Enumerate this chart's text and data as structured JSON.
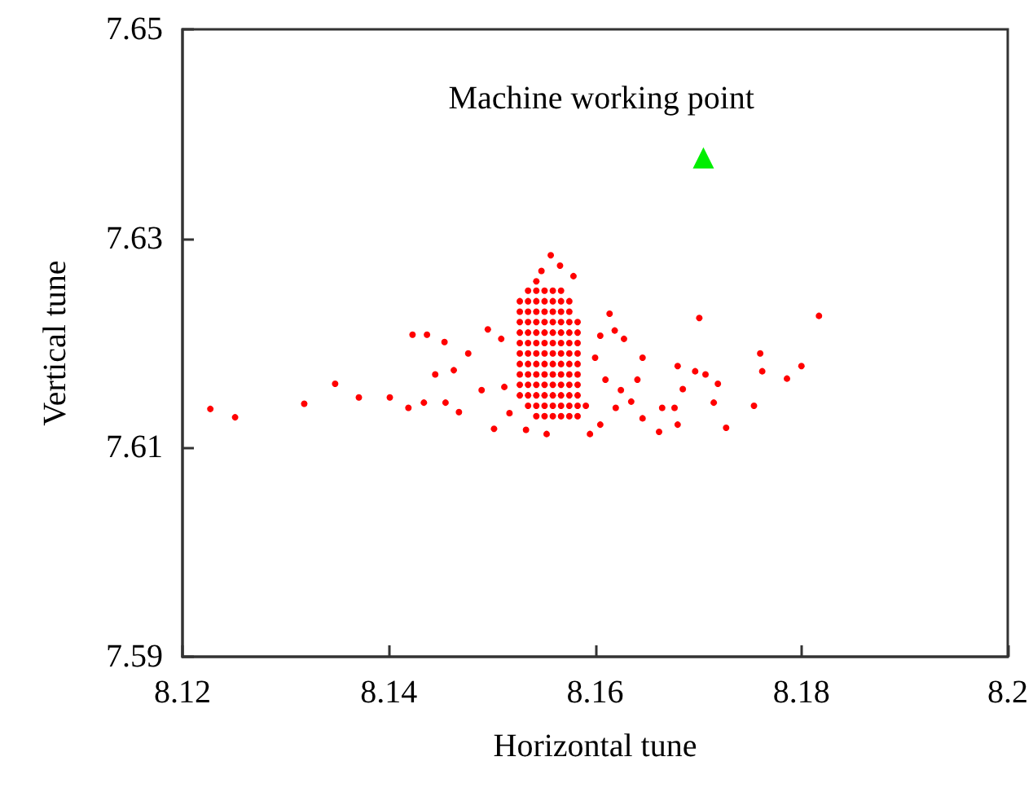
{
  "chart_data": {
    "type": "scatter",
    "xlabel": "Horizontal tune",
    "ylabel": "Vertical tune",
    "xlim": [
      8.12,
      8.2
    ],
    "xticks": [
      8.12,
      8.14,
      8.16,
      8.18,
      8.2
    ],
    "ylim": [
      7.59,
      7.65
    ],
    "yticks": [
      7.59,
      7.61,
      7.63,
      7.65
    ],
    "grid": false,
    "legend": false,
    "series": [
      {
        "color": "#ff0000",
        "marker": "circle",
        "x": [
          8.1227,
          8.1251,
          8.1318,
          8.1348,
          8.1371,
          8.1401,
          8.1423,
          8.1437,
          8.1454,
          8.1445,
          8.1463,
          8.1419,
          8.1434,
          8.1455,
          8.1468,
          8.1496,
          8.1477,
          8.149,
          8.1502,
          8.1512,
          8.1509,
          8.1614,
          8.1701,
          8.1817,
          8.176,
          8.1762,
          8.18,
          8.1786,
          8.1754,
          8.1727,
          8.1715,
          8.1719,
          8.1707,
          8.1697,
          8.168,
          8.1685,
          8.1677,
          8.168,
          8.1665,
          8.1662,
          8.1646,
          8.1628,
          8.1619,
          8.1605,
          8.16,
          8.161,
          8.1625,
          8.1635,
          8.1646,
          8.1641,
          8.162,
          8.1605,
          8.1595,
          8.1553,
          8.1533,
          8.1517,
          8.1579,
          8.1566,
          8.1557,
          8.1543,
          8.1548,
          8.1535,
          8.1543,
          8.1551,
          8.1559,
          8.1567,
          8.1527,
          8.1535,
          8.1543,
          8.1551,
          8.1559,
          8.1567,
          8.1575,
          8.1527,
          8.1535,
          8.1543,
          8.1551,
          8.1559,
          8.1567,
          8.1575,
          8.1527,
          8.1535,
          8.1543,
          8.1551,
          8.1559,
          8.1567,
          8.1575,
          8.1583,
          8.1527,
          8.1535,
          8.1543,
          8.1551,
          8.1559,
          8.1567,
          8.1575,
          8.1583,
          8.1527,
          8.1535,
          8.1543,
          8.1551,
          8.1559,
          8.1567,
          8.1575,
          8.1583,
          8.1527,
          8.1535,
          8.1543,
          8.1551,
          8.1559,
          8.1567,
          8.1575,
          8.1583,
          8.1527,
          8.1535,
          8.1543,
          8.1551,
          8.1559,
          8.1567,
          8.1575,
          8.1583,
          8.1527,
          8.1535,
          8.1543,
          8.1551,
          8.1559,
          8.1567,
          8.1575,
          8.1583,
          8.1527,
          8.1535,
          8.1543,
          8.1551,
          8.1559,
          8.1567,
          8.1575,
          8.1583,
          8.1527,
          8.1535,
          8.1543,
          8.1551,
          8.1559,
          8.1567,
          8.1575,
          8.1583,
          8.1535,
          8.1543,
          8.1551,
          8.1559,
          8.1567,
          8.1575,
          8.1583,
          8.1591,
          8.1543,
          8.1551,
          8.1559,
          8.1567,
          8.1575,
          8.1583
        ],
        "values": [
          7.6137,
          7.6129,
          7.6142,
          7.6161,
          7.6148,
          7.6148,
          7.6208,
          7.6208,
          7.6201,
          7.617,
          7.6174,
          7.6138,
          7.6143,
          7.6143,
          7.6134,
          7.6213,
          7.619,
          7.6155,
          7.6118,
          7.6158,
          7.6204,
          7.6228,
          7.6224,
          7.6226,
          7.619,
          7.6173,
          7.6178,
          7.6166,
          7.614,
          7.6119,
          7.6143,
          7.6161,
          7.617,
          7.6173,
          7.6178,
          7.6156,
          7.6138,
          7.6122,
          7.6138,
          7.6115,
          7.6186,
          7.6204,
          7.6212,
          7.6207,
          7.6186,
          7.6165,
          7.6155,
          7.6144,
          7.6128,
          7.6165,
          7.6138,
          7.6122,
          7.6113,
          7.6113,
          7.6117,
          7.6133,
          7.6264,
          7.6274,
          7.6284,
          7.6259,
          7.6269,
          7.625,
          7.625,
          7.625,
          7.625,
          7.625,
          7.624,
          7.624,
          7.624,
          7.624,
          7.624,
          7.624,
          7.624,
          7.623,
          7.623,
          7.623,
          7.623,
          7.623,
          7.623,
          7.623,
          7.622,
          7.622,
          7.622,
          7.622,
          7.622,
          7.622,
          7.622,
          7.622,
          7.621,
          7.621,
          7.621,
          7.621,
          7.621,
          7.621,
          7.621,
          7.621,
          7.62,
          7.62,
          7.62,
          7.62,
          7.62,
          7.62,
          7.62,
          7.62,
          7.619,
          7.619,
          7.619,
          7.619,
          7.619,
          7.619,
          7.619,
          7.619,
          7.618,
          7.618,
          7.618,
          7.618,
          7.618,
          7.618,
          7.618,
          7.618,
          7.617,
          7.617,
          7.617,
          7.617,
          7.617,
          7.617,
          7.617,
          7.617,
          7.616,
          7.616,
          7.616,
          7.616,
          7.616,
          7.616,
          7.616,
          7.616,
          7.615,
          7.615,
          7.615,
          7.615,
          7.615,
          7.615,
          7.615,
          7.615,
          7.614,
          7.614,
          7.614,
          7.614,
          7.614,
          7.614,
          7.614,
          7.614,
          7.613,
          7.613,
          7.613,
          7.613,
          7.613,
          7.613
        ]
      },
      {
        "name": "Machine working point",
        "color": "#00ee00",
        "marker": "triangle",
        "x": [
          8.1705
        ],
        "values": [
          7.6377
        ]
      }
    ]
  }
}
